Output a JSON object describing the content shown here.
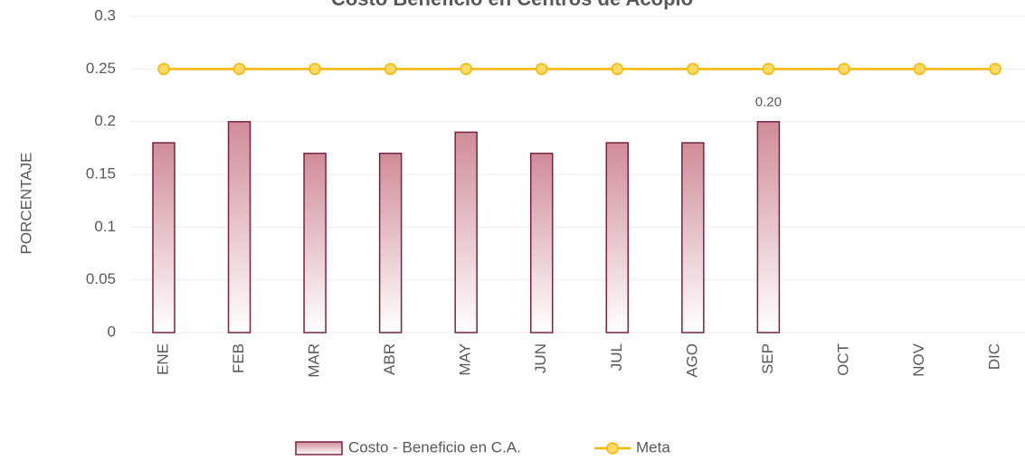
{
  "chart_data": {
    "type": "bar_line",
    "title": "Costo Beneficio en Centros de Acopio",
    "y_label": "PORCENTAJE",
    "categories": [
      "ENE",
      "FEB",
      "MAR",
      "ABR",
      "MAY",
      "JUN",
      "JUL",
      "AGO",
      "SEP",
      "OCT",
      "NOV",
      "DIC"
    ],
    "series": [
      {
        "name": "Costo - Beneficio en C.A.",
        "type": "bar",
        "color": "#d08c99",
        "edge_color": "#7b2141",
        "values": [
          0.18,
          0.2,
          0.17,
          0.17,
          0.19,
          0.17,
          0.18,
          0.18,
          0.2,
          null,
          null,
          null
        ],
        "value_labels": [
          null,
          null,
          null,
          null,
          null,
          null,
          null,
          null,
          "0.20",
          null,
          null,
          null
        ]
      },
      {
        "name": "Meta",
        "type": "line",
        "color": "#f5b800",
        "marker_color": "#ffd966",
        "values": [
          0.25,
          0.25,
          0.25,
          0.25,
          0.25,
          0.25,
          0.25,
          0.25,
          0.25,
          0.25,
          0.25,
          0.25
        ]
      }
    ],
    "ylim": [
      0,
      0.3
    ],
    "yticks": [
      0,
      0.05,
      0.1,
      0.15,
      0.2,
      0.25,
      0.3
    ],
    "grid": true,
    "legend": "bottom"
  }
}
